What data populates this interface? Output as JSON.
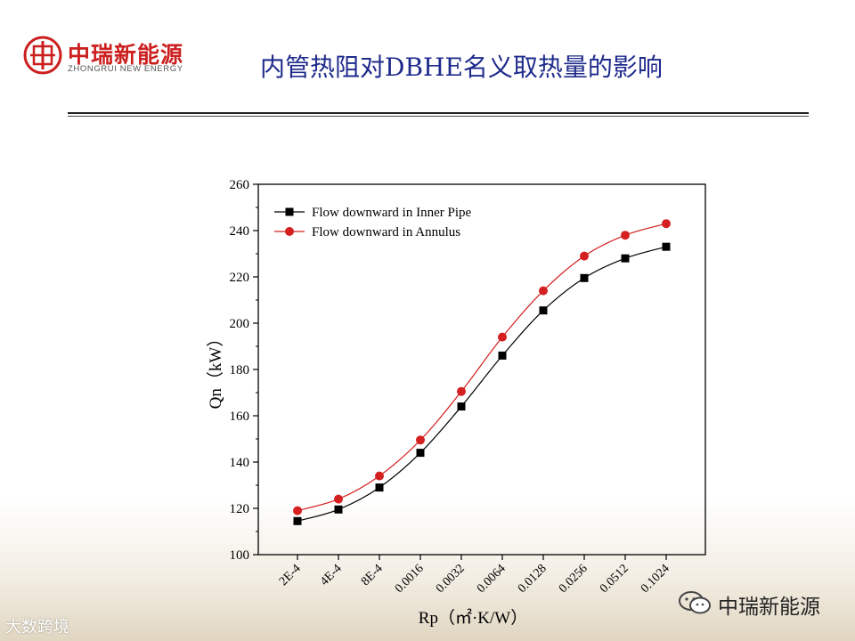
{
  "brand": {
    "name_cn": "中瑞新能源",
    "name_en": "ZHONGRUI NEW ENERGY"
  },
  "slide_title": "内管热阻对DBHE名义取热量的影响",
  "watermarks": {
    "left": "大数跨境",
    "right": "中瑞新能源"
  },
  "colors": {
    "title": "#1f2b8c",
    "brand_red": "#cc1f1f",
    "series_inner": "#000000",
    "series_annulus": "#d42020"
  },
  "chart_data": {
    "type": "line",
    "categories": [
      "2E-4",
      "4E-4",
      "8E-4",
      "0.0016",
      "0.0032",
      "0.0064",
      "0.0128",
      "0.0256",
      "0.0512",
      "0.1024"
    ],
    "series": [
      {
        "name": "Flow downward in Inner Pipe",
        "marker": "square",
        "color": "#000000",
        "values": [
          114.5,
          119.5,
          129,
          144,
          164,
          186,
          205.5,
          219.5,
          228,
          233
        ]
      },
      {
        "name": "Flow downward in Annulus",
        "marker": "circle",
        "color": "#d42020",
        "values": [
          119,
          124,
          134,
          149.5,
          170.5,
          194,
          214,
          229,
          238,
          243
        ]
      }
    ],
    "ylim": [
      100,
      260
    ],
    "yticks": [
      100,
      120,
      140,
      160,
      180,
      200,
      220,
      240,
      260
    ],
    "xlabel": "Rp（㎡·K/W）",
    "ylabel": "Qn（kW）",
    "legend_position": "top-left",
    "grid": false
  }
}
